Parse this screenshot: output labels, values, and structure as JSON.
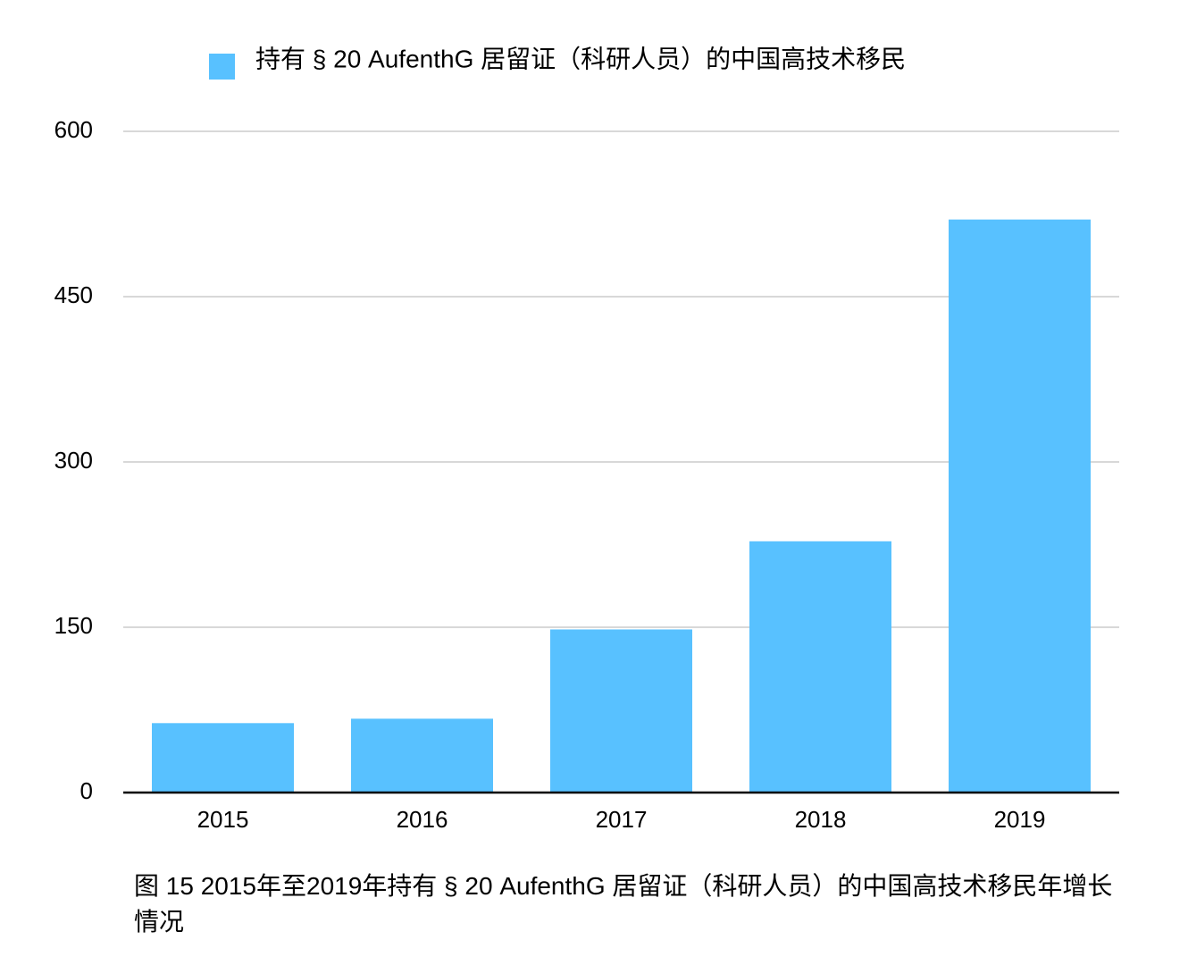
{
  "chart_data": {
    "type": "bar",
    "categories": [
      "2015",
      "2016",
      "2017",
      "2018",
      "2019"
    ],
    "series": [
      {
        "name": "持有 § 20 AufenthG 居留证（科研人员）的中国高技术移民",
        "values": [
          63,
          67,
          148,
          228,
          520
        ],
        "color": "#58C1FF"
      }
    ],
    "title": "",
    "xlabel": "",
    "ylabel": "",
    "ylim": [
      0,
      600
    ],
    "yticks": [
      0,
      150,
      300,
      450,
      600
    ],
    "grid": true,
    "legend": "top-center",
    "gridline_color": "#cccccc",
    "axis_color": "#000000"
  },
  "caption": "图 15 2015年至2019年持有 § 20 AufenthG 居留证（科研人员）的中国高技术移民年增长情况"
}
